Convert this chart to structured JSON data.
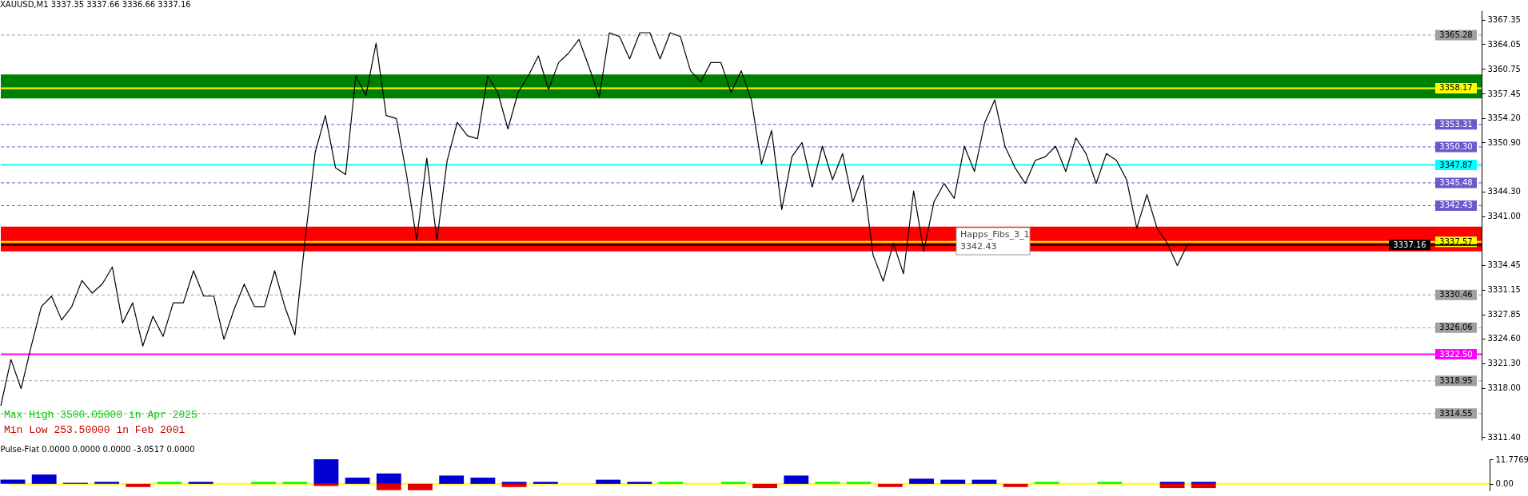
{
  "chart_data": [
    {
      "type": "line",
      "title": "XAUUSD,M1  3337.35 3337.66 3336.66 3337.16",
      "categories": [
        null,
        null,
        null,
        null,
        null,
        null,
        null,
        null,
        null,
        null,
        null,
        null,
        null,
        null,
        null,
        null,
        null,
        null,
        null,
        null,
        null,
        null,
        null,
        null,
        null,
        null,
        null,
        null,
        null,
        null,
        null,
        null,
        null,
        null,
        null,
        null,
        null,
        null,
        null,
        null,
        null,
        null,
        null,
        null,
        null,
        null,
        null,
        null,
        null,
        null,
        null,
        null,
        null,
        null,
        null,
        null,
        null,
        null,
        null,
        null,
        null,
        null,
        null,
        null,
        null,
        null,
        null,
        null,
        null,
        null,
        null,
        null,
        null,
        null,
        null,
        null,
        null,
        null,
        null,
        null,
        null,
        null,
        null,
        null,
        null,
        null,
        null,
        null,
        null,
        null,
        null,
        null,
        null,
        null,
        null,
        null,
        null,
        null,
        null,
        null,
        null,
        null,
        null,
        null,
        null,
        null,
        null,
        null,
        null,
        null,
        null,
        null,
        null,
        null,
        null,
        null,
        null,
        null,
        null,
        null,
        null,
        null,
        null,
        null,
        null,
        null,
        null,
        null,
        null,
        null,
        null,
        null,
        null,
        null,
        null,
        null,
        null,
        null,
        null,
        null,
        null,
        null,
        null,
        null,
        null,
        null,
        null
      ],
      "series": [
        {
          "color": "#000000",
          "values": [
            3315.6,
            3321.8,
            3317.9,
            3323.6,
            3328.9,
            3330.3,
            3327.1,
            3328.9,
            3332.4,
            3330.7,
            3331.9,
            3334.2,
            3326.7,
            3329.4,
            3323.6,
            3327.6,
            3324.9,
            3329.4,
            3329.4,
            3333.7,
            3330.3,
            3330.3,
            3324.5,
            3328.5,
            3331.9,
            3328.9,
            3328.9,
            3333.7,
            3328.9,
            3325.1,
            3337.8,
            3349.6,
            3354.5,
            3347.5,
            3346.6,
            3359.8,
            3357.2,
            3364.2,
            3354.5,
            3354.1,
            3346.6,
            3337.8,
            3348.8,
            3337.8,
            3348.4,
            3353.6,
            3351.8,
            3351.4,
            3359.8,
            3357.6,
            3352.7,
            3357.6,
            3359.8,
            3362.5,
            3358.0,
            3361.6,
            3362.9,
            3364.7,
            3361.0,
            3357.0,
            3365.6,
            3365.1,
            3362.1,
            3365.6,
            3365.6,
            3362.1,
            3365.6,
            3365.1,
            3360.5,
            3359.0,
            3361.6,
            3361.6,
            3357.6,
            3360.5,
            3356.6,
            3348.0,
            3352.5,
            3341.9,
            3349.0,
            3350.9,
            3344.9,
            3350.4,
            3345.9,
            3349.4,
            3342.9,
            3346.5,
            3335.8,
            3332.3,
            3337.4,
            3333.3,
            3344.4,
            3336.3,
            3342.9,
            3345.4,
            3343.4,
            3350.4,
            3347.0,
            3353.5,
            3356.6,
            3350.4,
            3347.5,
            3345.4,
            3348.5,
            3349.0,
            3350.4,
            3347.0,
            3351.5,
            3349.4,
            3345.4,
            3349.4,
            3348.5,
            3345.9,
            3339.4,
            3343.9,
            3339.4,
            3337.4,
            3334.4,
            3337.2,
            null,
            null,
            null,
            null,
            null,
            null,
            null,
            null,
            null,
            null,
            null,
            null,
            null,
            null,
            null,
            null,
            null,
            null,
            null,
            null,
            null,
            null,
            null,
            null,
            null,
            null,
            null,
            null,
            null
          ]
        }
      ],
      "ylim": [
        3311.0,
        3368.6
      ],
      "yticks": [
        3367.35,
        3364.05,
        3360.75,
        3357.45,
        {
          "value": 3354.2,
          "label": "3354.20"
        },
        {
          "value": 3350.9,
          "label": "3350.90"
        },
        {
          "value": 3344.3,
          "label": "3344.30"
        },
        {
          "value": 3341,
          "label": "3341.00"
        },
        3334.45,
        3331.15,
        3327.85,
        {
          "value": 3324.6,
          "label": "3324.60"
        },
        {
          "value": 3321.3,
          "label": "3321.30"
        },
        {
          "value": 3318,
          "label": "3318.00"
        },
        {
          "value": 3311.4,
          "label": "3311.40"
        }
      ],
      "bands": [
        {
          "axis": "y",
          "from": 3356.8,
          "to": 3360.0,
          "color": "#008000"
        },
        {
          "axis": "y",
          "from": 3336.3,
          "to": 3339.6,
          "color": "#ff0000"
        }
      ],
      "ref_lines": [
        {
          "axis": "y",
          "value": 3365.28,
          "label": "3365.28",
          "color": "#a0a0a0",
          "line_style": "dashed"
        },
        {
          "axis": "y",
          "value": 3358.17,
          "label": "3358.17",
          "color": "#ffff00",
          "line_style": "solid"
        },
        {
          "axis": "y",
          "value": 3353.31,
          "label": "3353.31",
          "color": "#6a5acd",
          "line_style": "dashed"
        },
        {
          "axis": "y",
          "value": 3350.3,
          "label": "3350.30",
          "color": "#6a5acd",
          "line_style": "dashed"
        },
        {
          "axis": "y",
          "value": 3347.87,
          "label": "3347.87",
          "color": "#00ffff",
          "line_style": "solid"
        },
        {
          "axis": "y",
          "value": 3345.48,
          "label": "3345.48",
          "color": "#6a5acd",
          "line_style": "dashed"
        },
        {
          "axis": "y",
          "value": 3342.43,
          "label": "3342.43",
          "color": "#6a5acd",
          "line_style": "dashed"
        },
        {
          "axis": "y",
          "value": 3337.57,
          "label": "3337.57",
          "color": "#ffff00",
          "line_style": "solid"
        },
        {
          "axis": "y",
          "value": 3337.16,
          "label": "3337.16",
          "color": "#000000",
          "line_style": "solid"
        },
        {
          "axis": "y",
          "value": 3330.46,
          "label": "3330.46",
          "color": "#a0a0a0",
          "line_style": "dashed"
        },
        {
          "axis": "y",
          "value": 3326.06,
          "label": "3326.06",
          "color": "#a0a0a0",
          "line_style": "dashed"
        },
        {
          "axis": "y",
          "value": 3322.5,
          "label": "3322.50",
          "color": "#ff00ff",
          "line_style": "solid"
        },
        {
          "axis": "y",
          "value": 3318.95,
          "label": "3318.95",
          "color": "#a0a0a0",
          "line_style": "dashed"
        },
        {
          "axis": "y",
          "value": 3314.55,
          "label": "3314.55",
          "color": "#a0a0a0",
          "line_style": "dashed"
        }
      ],
      "annotations": [
        "Happs_Fibs_3_1\n3342.43",
        "Max High 3500.05000 in Apr 2025",
        "Min Low  253.50000 in Feb 2001"
      ]
    },
    {
      "type": "bar",
      "title": "Pulse-Flat 0.0000 0.0000 0.0000 -3.0517 0.0000",
      "categories": [
        null,
        null,
        null,
        null,
        null,
        null,
        null,
        null,
        null,
        null,
        null,
        null,
        null,
        null,
        null,
        null,
        null,
        null,
        null,
        null,
        null,
        null,
        null,
        null,
        null,
        null,
        null,
        null,
        null,
        null,
        null,
        null,
        null,
        null,
        null,
        null,
        null,
        null,
        null,
        null,
        null,
        null,
        null,
        null,
        null,
        null,
        null,
        null
      ],
      "series": [
        {
          "color": "#00ff00",
          "values": [
            0,
            0,
            0,
            0,
            0,
            1,
            0,
            0,
            1,
            1,
            0,
            0,
            0,
            0,
            0,
            0,
            0,
            0,
            0,
            0,
            0,
            1,
            0,
            1,
            0,
            0,
            1,
            1,
            0,
            0,
            0,
            0,
            0,
            1,
            0,
            1,
            0,
            0,
            0,
            null,
            null,
            null,
            null,
            null,
            null,
            null,
            null,
            null
          ]
        },
        {
          "color": "#e00000",
          "values": [
            0,
            0,
            0,
            0,
            -1.5,
            0,
            0,
            0,
            0,
            0,
            -1,
            0,
            -3,
            -3,
            0,
            0,
            -1.5,
            0,
            0,
            0,
            0,
            0,
            0,
            0,
            -2,
            0,
            0,
            0,
            -1.5,
            0,
            0,
            0,
            -1.5,
            0,
            0,
            0,
            0,
            -2,
            -2,
            null,
            null,
            null,
            null,
            null,
            null,
            null,
            null,
            null
          ]
        },
        {
          "color": "#0000d0",
          "values": [
            2,
            4.5,
            0.5,
            1,
            0,
            0,
            1,
            0,
            0,
            0,
            11.8,
            3,
            5,
            0,
            4,
            3,
            1,
            1,
            0,
            2,
            1,
            0,
            0,
            0,
            0,
            4,
            0,
            0,
            0,
            2.5,
            2,
            2,
            0,
            0,
            0,
            0,
            0,
            1,
            1,
            null,
            null,
            null,
            null,
            null,
            null,
            null,
            null,
            null
          ]
        }
      ],
      "ylim": [
        -3.5,
        11.8
      ],
      "yticks": [
        11.7769,
        {
          "value": 0,
          "label": "0.00"
        }
      ],
      "ref_lines": [
        {
          "axis": "y",
          "value": 0,
          "color": "#ffff00",
          "line_style": "solid"
        }
      ]
    }
  ]
}
